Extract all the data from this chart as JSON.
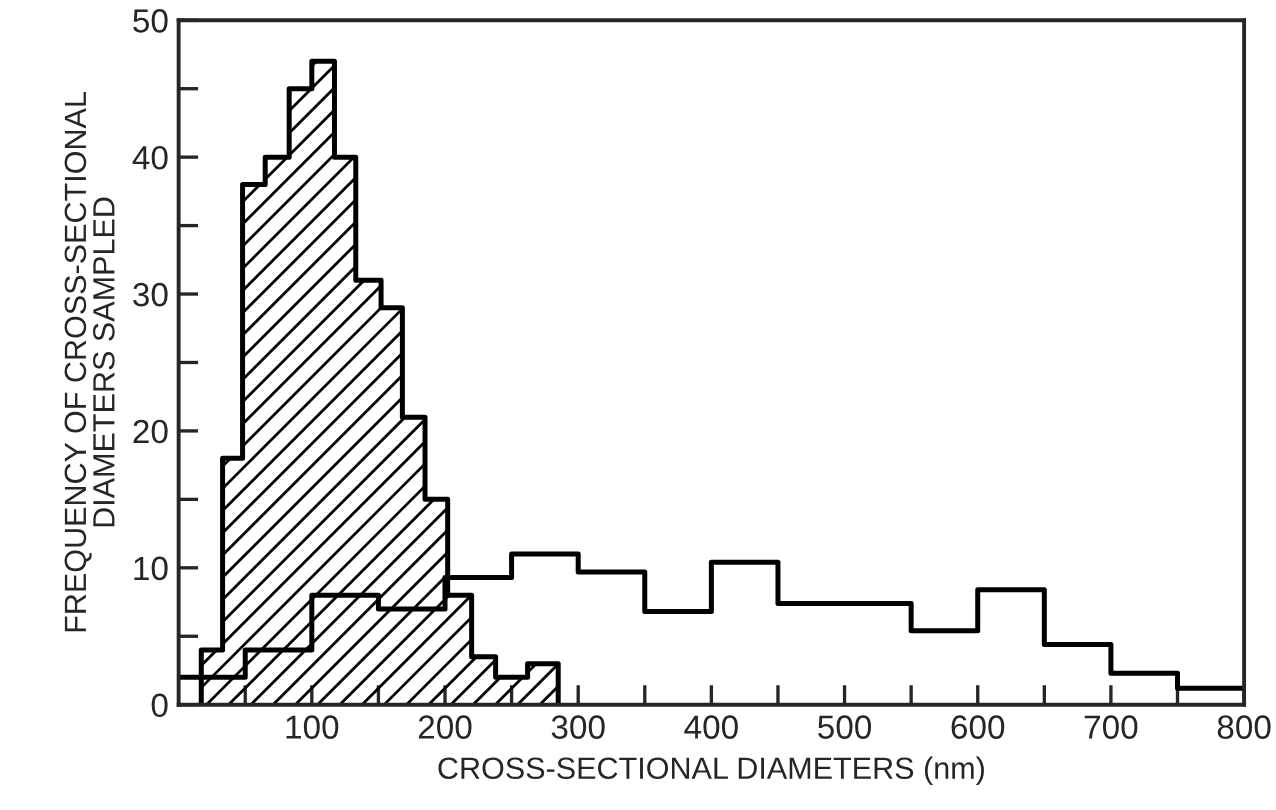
{
  "chart_data": {
    "type": "step",
    "xlabel": "CROSS-SECTIONAL DIAMETERS (nm)",
    "ylabel": "FREQUENCY OF CROSS-SECTIONAL\nDIAMETERS SAMPLED",
    "series": [
      {
        "type": "area",
        "color": "#000000",
        "x": [
          17,
          33,
          48,
          65,
          83,
          100,
          117,
          133,
          152,
          168,
          185,
          202,
          220,
          238,
          262,
          285
        ],
        "values": [
          4,
          18,
          38,
          40,
          45,
          47,
          40,
          31,
          29,
          21,
          15,
          8,
          3.5,
          2,
          3,
          3
        ]
      },
      {
        "type": "step",
        "color": "#000000",
        "x": [
          0,
          50,
          100,
          150,
          200,
          250,
          300,
          350,
          400,
          450,
          500,
          550,
          600,
          650,
          700,
          750,
          800
        ],
        "values": [
          2,
          4,
          8,
          7,
          9.3,
          11,
          9.7,
          6.8,
          10.4,
          7.4,
          7.4,
          5.4,
          8.4,
          4.4,
          2.3,
          1.2,
          1.2
        ]
      }
    ],
    "xlim": [
      0,
      800
    ],
    "xticks": [
      {
        "value": 50,
        "label": null
      },
      100,
      {
        "value": 150,
        "label": null
      },
      200,
      {
        "value": 250,
        "label": null
      },
      300,
      {
        "value": 350,
        "label": null
      },
      400,
      {
        "value": 450,
        "label": null
      },
      500,
      {
        "value": 550,
        "label": null
      },
      600,
      {
        "value": 650,
        "label": null
      },
      700,
      {
        "value": 750,
        "label": null
      },
      800
    ],
    "ylim": [
      0,
      50
    ],
    "yticks": [
      0,
      {
        "value": 5,
        "label": null
      },
      10,
      {
        "value": 15,
        "label": null
      },
      20,
      {
        "value": 25,
        "label": null
      },
      30,
      {
        "value": 35,
        "label": null
      },
      40,
      {
        "value": 45,
        "label": null
      },
      50
    ],
    "grid": false
  }
}
